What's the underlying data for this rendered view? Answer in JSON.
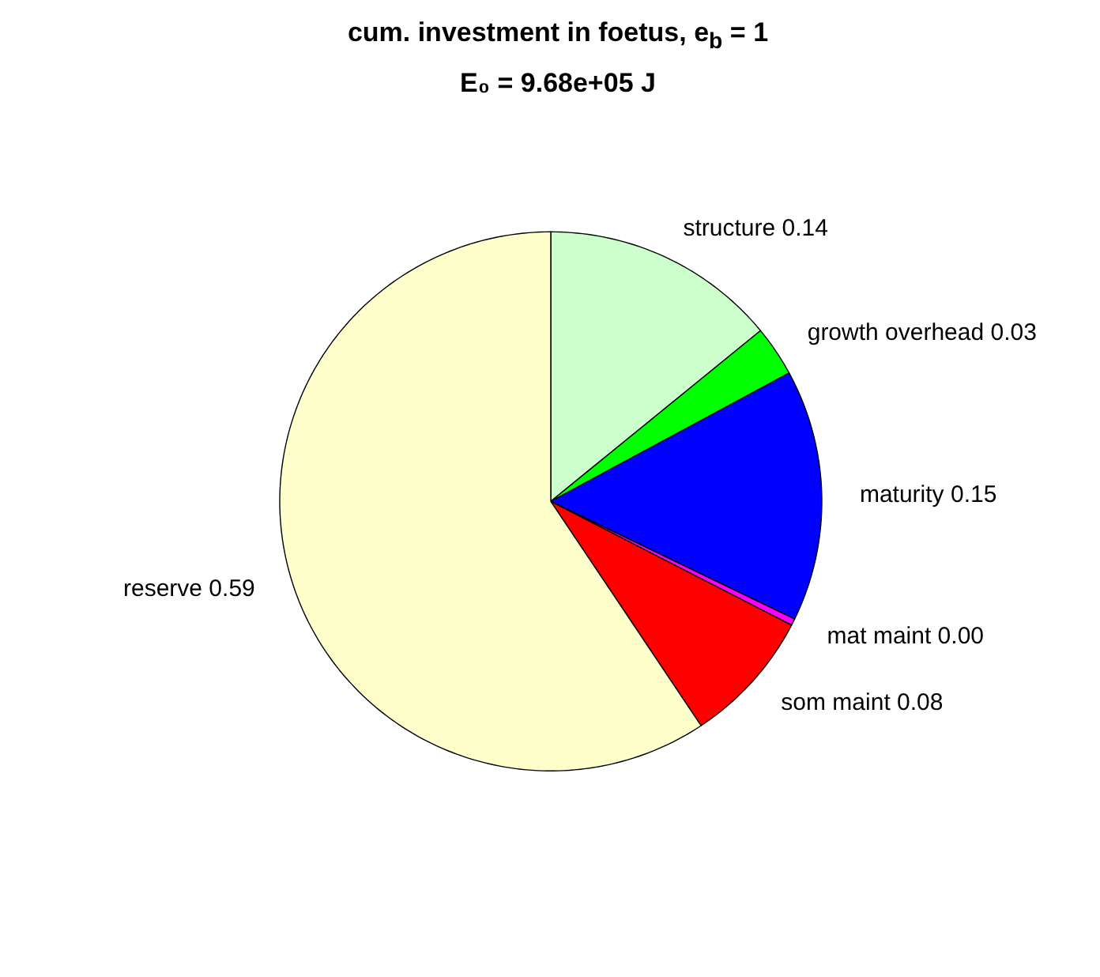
{
  "chart_data": {
    "type": "pie",
    "title": "cum. investment in foetus, e$_{b}$ = 1",
    "subtitle": "E₀ = 9.68e+05 J",
    "categories": [
      "structure",
      "growth overhead",
      "maturity",
      "mat maint",
      "som maint",
      "reserve"
    ],
    "values": [
      0.14,
      0.03,
      0.15,
      0.004,
      0.08,
      0.59
    ],
    "value_labels": [
      "0.14",
      "0.03",
      "0.15",
      "0.00",
      "0.08",
      "0.59"
    ],
    "colors": [
      "#ccffcc",
      "#00ff00",
      "#0000ff",
      "#ff00ff",
      "#ff0000",
      "#ffffcc"
    ]
  }
}
